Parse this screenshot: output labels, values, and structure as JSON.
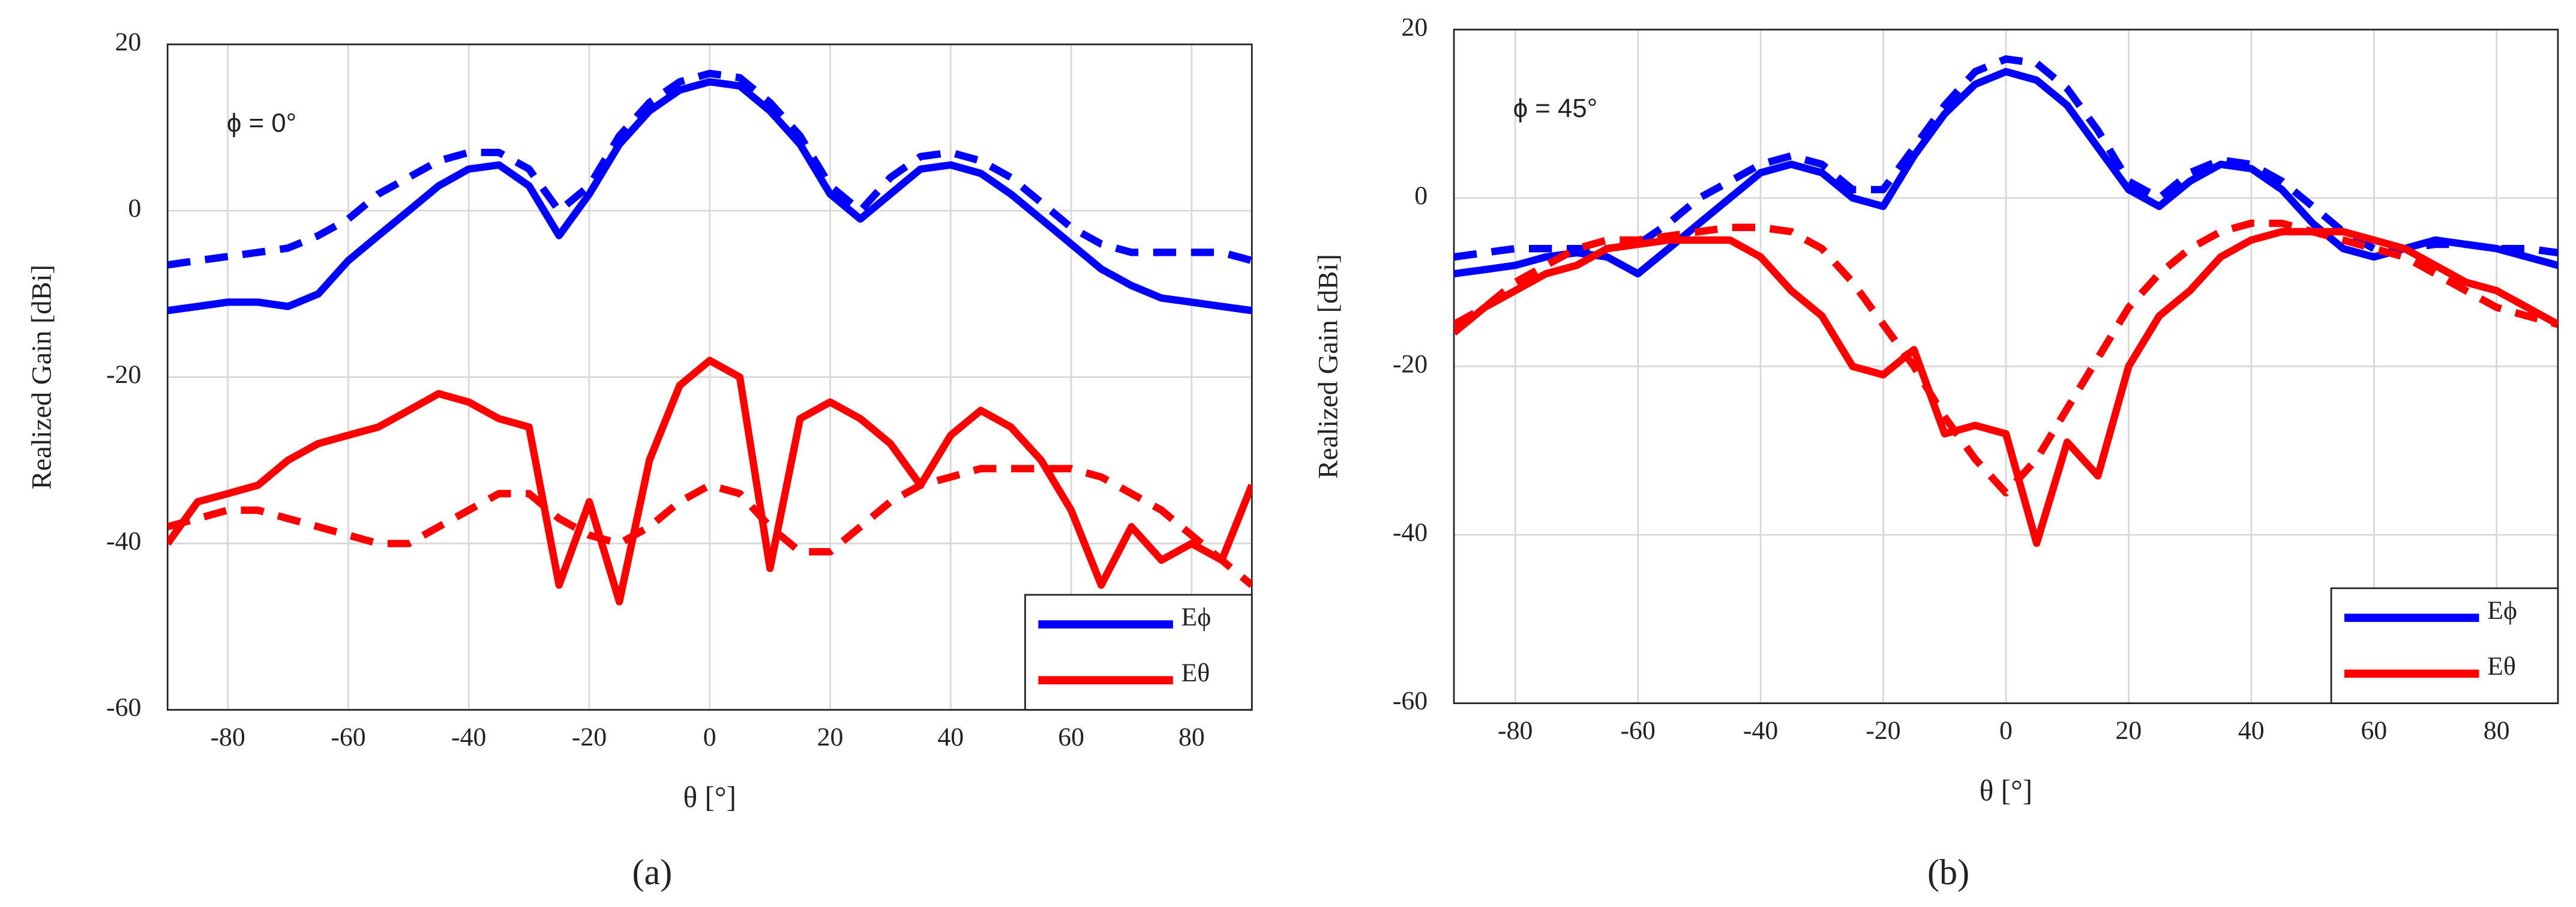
{
  "chart_data": [
    {
      "type": "line",
      "annotation": "ϕ = 0°",
      "caption": "(a)",
      "x_label": "θ [°]",
      "y_label": "Realized Gain [dBi]",
      "xlim": [
        -90,
        90
      ],
      "xticks": [
        -80,
        -60,
        -40,
        -20,
        0,
        20,
        40,
        60,
        80
      ],
      "ylim": [
        -60,
        20
      ],
      "yticks": [
        -60,
        -40,
        -20,
        0,
        20
      ],
      "grid": true,
      "legend": "lower right",
      "x": [
        -90,
        -85,
        -80,
        -75,
        -70,
        -65,
        -60,
        -55,
        -50,
        -45,
        -40,
        -35,
        -30,
        -25,
        -20,
        -15,
        -10,
        -5,
        0,
        5,
        10,
        15,
        20,
        25,
        30,
        35,
        40,
        45,
        50,
        55,
        60,
        65,
        70,
        75,
        80,
        85,
        90
      ],
      "series": [
        {
          "name": "Eϕ",
          "color": "#0000ff",
          "dashed": false,
          "values": [
            -12,
            -11.5,
            -11,
            -11,
            -11.5,
            -10,
            -6,
            -3,
            0,
            3,
            5,
            5.5,
            3,
            -3,
            2,
            8,
            12,
            14.5,
            15.5,
            15,
            12,
            8,
            2,
            -1,
            2,
            5,
            5.5,
            4.5,
            2,
            -1,
            -4,
            -7,
            -9,
            -10.5,
            -11,
            -11.5,
            -12
          ]
        },
        {
          "color": "#0000ff",
          "dashed": true,
          "values": [
            -6.5,
            -6,
            -5.5,
            -5,
            -4.5,
            -3,
            -1,
            2,
            4,
            6,
            7,
            7,
            5,
            0,
            3,
            9,
            13,
            15.5,
            16.5,
            16,
            13,
            9,
            3,
            0,
            4,
            6.5,
            7,
            6,
            4,
            1,
            -2,
            -4,
            -5,
            -5,
            -5,
            -5,
            -6
          ]
        },
        {
          "name": "Eθ",
          "color": "#ff0000",
          "dashed": false,
          "values": [
            -40,
            -35,
            -34,
            -33,
            -30,
            -28,
            -27,
            -26,
            -24,
            -22,
            -23,
            -25,
            -26,
            -45,
            -35,
            -47,
            -30,
            -21,
            -18,
            -20,
            -43,
            -25,
            -23,
            -25,
            -28,
            -33,
            -27,
            -24,
            -26,
            -30,
            -36,
            -45,
            -38,
            -42,
            -40,
            -42,
            -33
          ]
        },
        {
          "color": "#ff0000",
          "dashed": true,
          "values": [
            -38,
            -37,
            -36,
            -36,
            -37,
            -38,
            -39,
            -40,
            -40,
            -38,
            -36,
            -34,
            -34,
            -37,
            -39,
            -40,
            -38,
            -35,
            -33,
            -34,
            -38,
            -41,
            -41,
            -38,
            -35,
            -33,
            -32,
            -31,
            -31,
            -31,
            -31,
            -32,
            -34,
            -36,
            -39,
            -42,
            -45
          ]
        }
      ]
    },
    {
      "type": "line",
      "annotation": "ϕ = 45°",
      "caption": "(b)",
      "x_label": "θ [°]",
      "y_label": "Realized Gain [dBi]",
      "xlim": [
        -90,
        90
      ],
      "xticks": [
        -80,
        -60,
        -40,
        -20,
        0,
        20,
        40,
        60,
        80
      ],
      "ylim": [
        -60,
        20
      ],
      "yticks": [
        -60,
        -40,
        -20,
        0,
        20
      ],
      "grid": true,
      "legend": "lower right",
      "x": [
        -90,
        -85,
        -80,
        -75,
        -70,
        -65,
        -60,
        -55,
        -50,
        -45,
        -40,
        -35,
        -30,
        -25,
        -20,
        -15,
        -10,
        -5,
        0,
        5,
        10,
        15,
        20,
        25,
        30,
        35,
        40,
        45,
        50,
        55,
        60,
        65,
        70,
        75,
        80,
        85,
        90
      ],
      "series": [
        {
          "name": "Eϕ",
          "color": "#0000ff",
          "dashed": false,
          "values": [
            -9,
            -8.5,
            -8,
            -7,
            -6.5,
            -7,
            -9,
            -6,
            -3,
            0,
            3,
            4,
            3,
            0,
            -1,
            5,
            10,
            13.5,
            15,
            14,
            11,
            6,
            1,
            -1,
            2,
            4,
            3.5,
            1,
            -3,
            -6,
            -7,
            -6,
            -5,
            -5.5,
            -6,
            -7,
            -8
          ]
        },
        {
          "color": "#0000ff",
          "dashed": true,
          "values": [
            -7,
            -6.5,
            -6,
            -6,
            -6,
            -6,
            -5.5,
            -3,
            0,
            2,
            4,
            5,
            4,
            1,
            1,
            6,
            11,
            15,
            16.5,
            16,
            13,
            8,
            2,
            0,
            3,
            4.5,
            4,
            2,
            -1,
            -4,
            -6,
            -6,
            -5.5,
            -5.5,
            -6,
            -6,
            -6.5
          ]
        },
        {
          "name": "Eθ",
          "color": "#ff0000",
          "dashed": false,
          "values": [
            -16,
            -13,
            -11,
            -9,
            -8,
            -6,
            -5.5,
            -5,
            -5,
            -5,
            -7,
            -11,
            -14,
            -20,
            -21,
            -18,
            -28,
            -27,
            -28,
            -41,
            -29,
            -33,
            -20,
            -14,
            -11,
            -7,
            -5,
            -4,
            -4,
            -4,
            -5,
            -6,
            -8,
            -10,
            -11,
            -13,
            -15
          ]
        },
        {
          "color": "#ff0000",
          "dashed": true,
          "values": [
            -15,
            -13,
            -10,
            -8,
            -6,
            -5,
            -5,
            -4.5,
            -4,
            -3.5,
            -3.5,
            -4,
            -6,
            -10,
            -15,
            -20,
            -26,
            -31,
            -35,
            -31,
            -25,
            -19,
            -13,
            -9,
            -6,
            -4,
            -3,
            -3,
            -4,
            -5,
            -6,
            -7,
            -9,
            -11,
            -13,
            -14,
            -15
          ]
        }
      ]
    }
  ]
}
